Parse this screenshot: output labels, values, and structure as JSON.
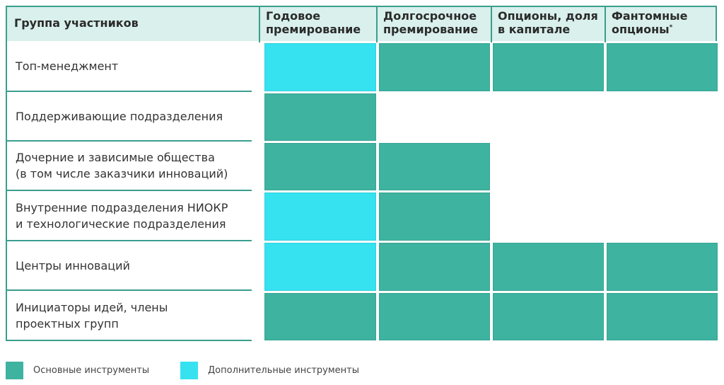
{
  "colors": {
    "main": "#3db3a0",
    "additional": "#36e2f0",
    "header_bg": "#d9f0ec",
    "border": "#3a9e8e"
  },
  "header": {
    "group_label": "Группа участников",
    "columns": [
      {
        "line1": "Годовое",
        "line2": "премирование",
        "sup": ""
      },
      {
        "line1": "Долгосрочное",
        "line2": "премирование",
        "sup": ""
      },
      {
        "line1": "Опционы, доля",
        "line2": "в капитале",
        "sup": ""
      },
      {
        "line1": "Фантомные",
        "line2": "опционы",
        "sup": "*"
      }
    ]
  },
  "rows": [
    {
      "line1": "Топ-менеджмент",
      "line2": "",
      "cells": [
        "additional",
        "main",
        "main",
        "main"
      ]
    },
    {
      "line1": "Поддерживающие подразделения",
      "line2": "",
      "cells": [
        "main",
        "",
        "",
        ""
      ]
    },
    {
      "line1": "Дочерние и зависимые общества",
      "line2": "(в том числе заказчики инноваций)",
      "cells": [
        "main",
        "main",
        "",
        ""
      ]
    },
    {
      "line1": "Внутренние подразделения НИОКР",
      "line2": "и технологические подразделения",
      "cells": [
        "additional",
        "main",
        "",
        ""
      ]
    },
    {
      "line1": "Центры инноваций",
      "line2": "",
      "cells": [
        "additional",
        "main",
        "main",
        "main"
      ]
    },
    {
      "line1": "Инициаторы идей, члены",
      "line2": "проектных групп",
      "cells": [
        "main",
        "main",
        "main",
        "main"
      ]
    }
  ],
  "legend": {
    "main_label": "Основные инструменты",
    "additional_label": "Дополнительные инструменты"
  }
}
